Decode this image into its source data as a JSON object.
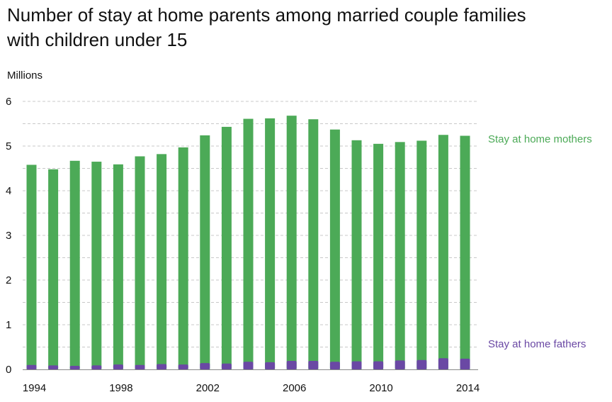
{
  "chart_data": {
    "type": "bar",
    "title_line1": "Number of stay at home parents among married couple families",
    "title_line2": "with children under 15",
    "ylabel": "Millions",
    "ylim": [
      0,
      6
    ],
    "yticks": [
      "0",
      "1",
      "2",
      "3",
      "4",
      "5",
      "6"
    ],
    "grid": true,
    "categories": [
      "1994",
      "1995",
      "1996",
      "1997",
      "1998",
      "1999",
      "2000",
      "2001",
      "2002",
      "2003",
      "2004",
      "2005",
      "2006",
      "2007",
      "2008",
      "2009",
      "2010",
      "2011",
      "2012",
      "2013",
      "2014"
    ],
    "xtick_labels": [
      "1994",
      "1998",
      "2002",
      "2006",
      "2010",
      "2014"
    ],
    "series": [
      {
        "name": "Stay at home mothers",
        "color": "#4caa57",
        "values": [
          4.58,
          4.48,
          4.67,
          4.65,
          4.59,
          4.77,
          4.82,
          4.97,
          5.24,
          5.43,
          5.61,
          5.62,
          5.68,
          5.6,
          5.37,
          5.13,
          5.05,
          5.09,
          5.12,
          5.25,
          5.23
        ]
      },
      {
        "name": "Stay at home fathers",
        "color": "#6a48a4",
        "values": [
          0.1,
          0.09,
          0.08,
          0.09,
          0.11,
          0.1,
          0.12,
          0.11,
          0.14,
          0.13,
          0.17,
          0.16,
          0.19,
          0.19,
          0.17,
          0.18,
          0.18,
          0.2,
          0.21,
          0.25,
          0.24
        ]
      }
    ]
  }
}
